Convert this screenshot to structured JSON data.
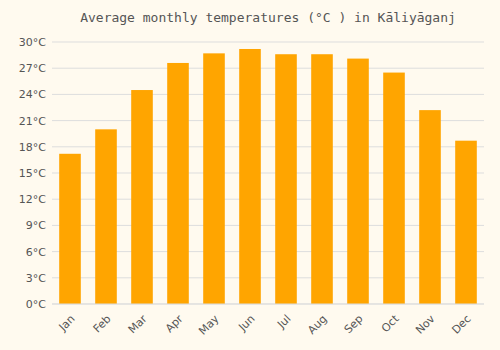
{
  "chart_data": {
    "type": "bar",
    "title": "Average monthly temperatures (°C ) in Kāliyāganj",
    "categories": [
      "Jan",
      "Feb",
      "Mar",
      "Apr",
      "May",
      "Jun",
      "Jul",
      "Aug",
      "Sep",
      "Oct",
      "Nov",
      "Dec"
    ],
    "values": [
      17.2,
      20.0,
      24.5,
      27.6,
      28.7,
      29.2,
      28.6,
      28.6,
      28.1,
      26.5,
      22.2,
      18.7
    ],
    "color": "#FFA500",
    "ylim": [
      0,
      30
    ],
    "yticks": [
      {
        "value": 0,
        "label": "0°C"
      },
      {
        "value": 3,
        "label": "3°C"
      },
      {
        "value": 6,
        "label": "6°C"
      },
      {
        "value": 9,
        "label": "9°C"
      },
      {
        "value": 12,
        "label": "12°C"
      },
      {
        "value": 15,
        "label": "15°C"
      },
      {
        "value": 18,
        "label": "18°C"
      },
      {
        "value": 21,
        "label": "21°C"
      },
      {
        "value": 24,
        "label": "24°C"
      },
      {
        "value": 27,
        "label": "27°C"
      },
      {
        "value": 30,
        "label": "30°C"
      }
    ],
    "grid": true
  }
}
